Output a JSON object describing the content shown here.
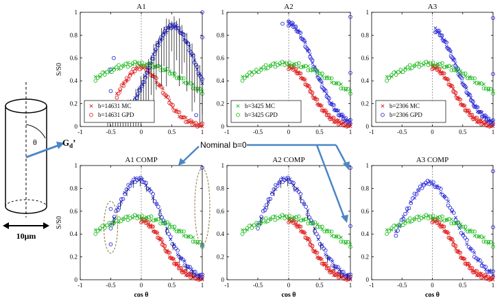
{
  "figure": {
    "annotation": "Nominal b=0",
    "cylinder": {
      "theta_label": "θ",
      "gradient_label": "G",
      "gradient_subscript": "d",
      "gradient_prime": "’",
      "width_label": "10μm"
    }
  },
  "colors": {
    "mc_red": "#e02020",
    "gpd_blue": "#2a2ad8",
    "gpd_green": "#22bb22",
    "guide": "#999999",
    "arrow": "#4a86c5",
    "ellipse": "#9a8a55",
    "errorbar": "#000000"
  },
  "chart_data": [
    {
      "id": "A1",
      "type": "scatter",
      "title": "A1",
      "xlabel": "",
      "ylabel": "S/S0",
      "xlim": [
        -1,
        1
      ],
      "ylim": [
        0,
        1
      ],
      "xticks": [
        "-1",
        "-0.5",
        "0",
        "0.5",
        "1"
      ],
      "yticks": [
        "0",
        "0.2",
        "0.4",
        "0.6",
        "0.8",
        "1"
      ],
      "legend": [
        "b=14631 MC",
        "b=14631 GPD"
      ],
      "legend_colors": [
        "#e02020",
        "#e02020"
      ],
      "series": [
        {
          "name": "red",
          "curve": {
            "center": 0.05,
            "amp": 0.52,
            "decay": 0.35,
            "peak": 0.0
          },
          "x_range": [
            -0.4,
            1.0
          ]
        },
        {
          "name": "blue",
          "curve": {
            "center": 0.52,
            "amp": 0.88,
            "decay": 0.38,
            "peak": 0.52
          },
          "x_range": [
            -0.1,
            1.0
          ]
        },
        {
          "name": "green",
          "curve": {
            "center": 0.0,
            "amp": 0.55,
            "decay": 0.95,
            "peak": -0.05
          },
          "x_range": [
            -0.75,
            1.0
          ]
        }
      ],
      "outliers": [
        [
          1.0,
          1.0
        ],
        [
          -0.5,
          0.31
        ],
        [
          -0.5,
          0.5
        ],
        [
          -0.45,
          0.6
        ],
        [
          0.9,
          0.1
        ],
        [
          1.0,
          0.78
        ]
      ],
      "has_errorbars": true
    },
    {
      "id": "A2",
      "type": "scatter",
      "title": "A2",
      "xlabel": "",
      "ylabel": "",
      "xlim": [
        -1,
        1
      ],
      "ylim": [
        0,
        1
      ],
      "xticks": [
        "-1",
        "-0.5",
        "0",
        "0.5",
        "1"
      ],
      "yticks": [
        "0",
        "0.2",
        "0.4",
        "0.6",
        "0.8",
        "1"
      ],
      "legend": [
        "b=3425 MC",
        "b=3425 GPD"
      ],
      "legend_colors": [
        "#22bb22",
        "#22bb22"
      ],
      "series": [
        {
          "name": "red",
          "curve": {
            "center": 0.05,
            "amp": 0.52,
            "decay": 0.35,
            "peak": 0.0
          },
          "x_range": [
            0.0,
            1.0
          ]
        },
        {
          "name": "blue",
          "curve": {
            "center": 0.0,
            "amp": 0.9,
            "decay": 0.4,
            "peak": 0.0
          },
          "x_range": [
            0.0,
            1.0
          ]
        },
        {
          "name": "green",
          "curve": {
            "center": 0.0,
            "amp": 0.55,
            "decay": 0.95,
            "peak": -0.05
          },
          "x_range": [
            -0.75,
            1.0
          ]
        }
      ],
      "outliers": [
        [
          -0.1,
          0.9
        ],
        [
          1.0,
          0.96
        ],
        [
          1.0,
          0.47
        ],
        [
          0.0,
          0.92
        ]
      ],
      "has_errorbars": false
    },
    {
      "id": "A3",
      "type": "scatter",
      "title": "A3",
      "xlabel": "",
      "ylabel": "",
      "xlim": [
        -1,
        1
      ],
      "ylim": [
        0,
        1
      ],
      "xticks": [
        "-1",
        "-0.5",
        "0",
        "0.5",
        "1"
      ],
      "yticks": [
        "0",
        "0.2",
        "0.4",
        "0.6",
        "0.8",
        "1"
      ],
      "legend": [
        "b=2306 MC",
        "b=2306 GPD"
      ],
      "legend_colors": [
        "#e02020",
        "#2a2ad8"
      ],
      "series": [
        {
          "name": "red",
          "curve": {
            "center": 0.05,
            "amp": 0.52,
            "decay": 0.35,
            "peak": 0.0
          },
          "x_range": [
            0.0,
            1.0
          ]
        },
        {
          "name": "blue",
          "curve": {
            "center": 0.0,
            "amp": 0.85,
            "decay": 0.4,
            "peak": 0.0
          },
          "x_range": [
            0.05,
            1.0
          ]
        },
        {
          "name": "green",
          "curve": {
            "center": 0.0,
            "amp": 0.55,
            "decay": 0.95,
            "peak": -0.05
          },
          "x_range": [
            -0.75,
            1.0
          ]
        }
      ],
      "outliers": [
        [
          1.0,
          0.95
        ],
        [
          1.0,
          0.46
        ]
      ],
      "has_errorbars": false
    },
    {
      "id": "A1COMP",
      "type": "scatter",
      "title": "A1 COMP",
      "xlabel": "cos θ",
      "ylabel": "S/S0",
      "xlim": [
        -1,
        1
      ],
      "ylim": [
        0,
        1
      ],
      "xticks": [
        "-1",
        "-0.5",
        "0",
        "0.5",
        "1"
      ],
      "yticks": [
        "0",
        "0.2",
        "0.4",
        "0.6",
        "0.8",
        "1"
      ],
      "legend": [],
      "legend_colors": [],
      "series": [
        {
          "name": "red",
          "curve": {
            "center": 0.05,
            "amp": 0.52,
            "decay": 0.35,
            "peak": 0.0
          },
          "x_range": [
            0.0,
            1.0
          ]
        },
        {
          "name": "blue",
          "curve": {
            "center": 0.0,
            "amp": 0.88,
            "decay": 0.4,
            "peak": -0.05
          },
          "x_range": [
            -0.5,
            1.0
          ]
        },
        {
          "name": "green",
          "curve": {
            "center": 0.0,
            "amp": 0.55,
            "decay": 0.95,
            "peak": -0.05
          },
          "x_range": [
            -0.75,
            1.0
          ]
        }
      ],
      "outliers": [
        [
          1.0,
          0.98
        ],
        [
          1.0,
          0.3
        ],
        [
          -0.5,
          0.31
        ],
        [
          -0.5,
          0.62
        ]
      ],
      "has_errorbars": true
    },
    {
      "id": "A2COMP",
      "type": "scatter",
      "title": "A2 COMP",
      "xlabel": "cos θ",
      "ylabel": "",
      "xlim": [
        -1,
        1
      ],
      "ylim": [
        0,
        1
      ],
      "xticks": [
        "-1",
        "-0.5",
        "0",
        "0.5",
        "1"
      ],
      "yticks": [
        "0",
        "0.2",
        "0.4",
        "0.6",
        "0.8",
        "1"
      ],
      "legend": [],
      "legend_colors": [],
      "series": [
        {
          "name": "red",
          "curve": {
            "center": 0.05,
            "amp": 0.52,
            "decay": 0.35,
            "peak": 0.0
          },
          "x_range": [
            0.0,
            1.0
          ]
        },
        {
          "name": "blue",
          "curve": {
            "center": 0.0,
            "amp": 0.88,
            "decay": 0.4,
            "peak": -0.05
          },
          "x_range": [
            -0.5,
            1.0
          ]
        },
        {
          "name": "green",
          "curve": {
            "center": 0.0,
            "amp": 0.55,
            "decay": 0.95,
            "peak": -0.05
          },
          "x_range": [
            -0.75,
            1.0
          ]
        }
      ],
      "outliers": [
        [
          1.0,
          0.98
        ],
        [
          1.0,
          0.47
        ]
      ],
      "has_errorbars": true
    },
    {
      "id": "A3COMP",
      "type": "scatter",
      "title": "A3 COMP",
      "xlabel": "cos θ",
      "ylabel": "",
      "xlim": [
        -1,
        1
      ],
      "ylim": [
        0,
        1
      ],
      "xticks": [
        "-1",
        "-0.5",
        "0",
        "0.5",
        "1"
      ],
      "yticks": [
        "0",
        "0.2",
        "0.4",
        "0.6",
        "0.8",
        "1"
      ],
      "legend": [],
      "legend_colors": [],
      "series": [
        {
          "name": "red",
          "curve": {
            "center": 0.05,
            "amp": 0.52,
            "decay": 0.35,
            "peak": 0.0
          },
          "x_range": [
            0.0,
            1.0
          ]
        },
        {
          "name": "blue",
          "curve": {
            "center": -0.05,
            "amp": 0.85,
            "decay": 0.45,
            "peak": -0.05
          },
          "x_range": [
            -0.6,
            1.0
          ]
        },
        {
          "name": "green",
          "curve": {
            "center": 0.0,
            "amp": 0.55,
            "decay": 0.95,
            "peak": -0.05
          },
          "x_range": [
            -0.75,
            1.0
          ]
        }
      ],
      "outliers": [
        [
          1.0,
          0.95
        ],
        [
          1.0,
          0.46
        ]
      ],
      "has_errorbars": false
    }
  ]
}
